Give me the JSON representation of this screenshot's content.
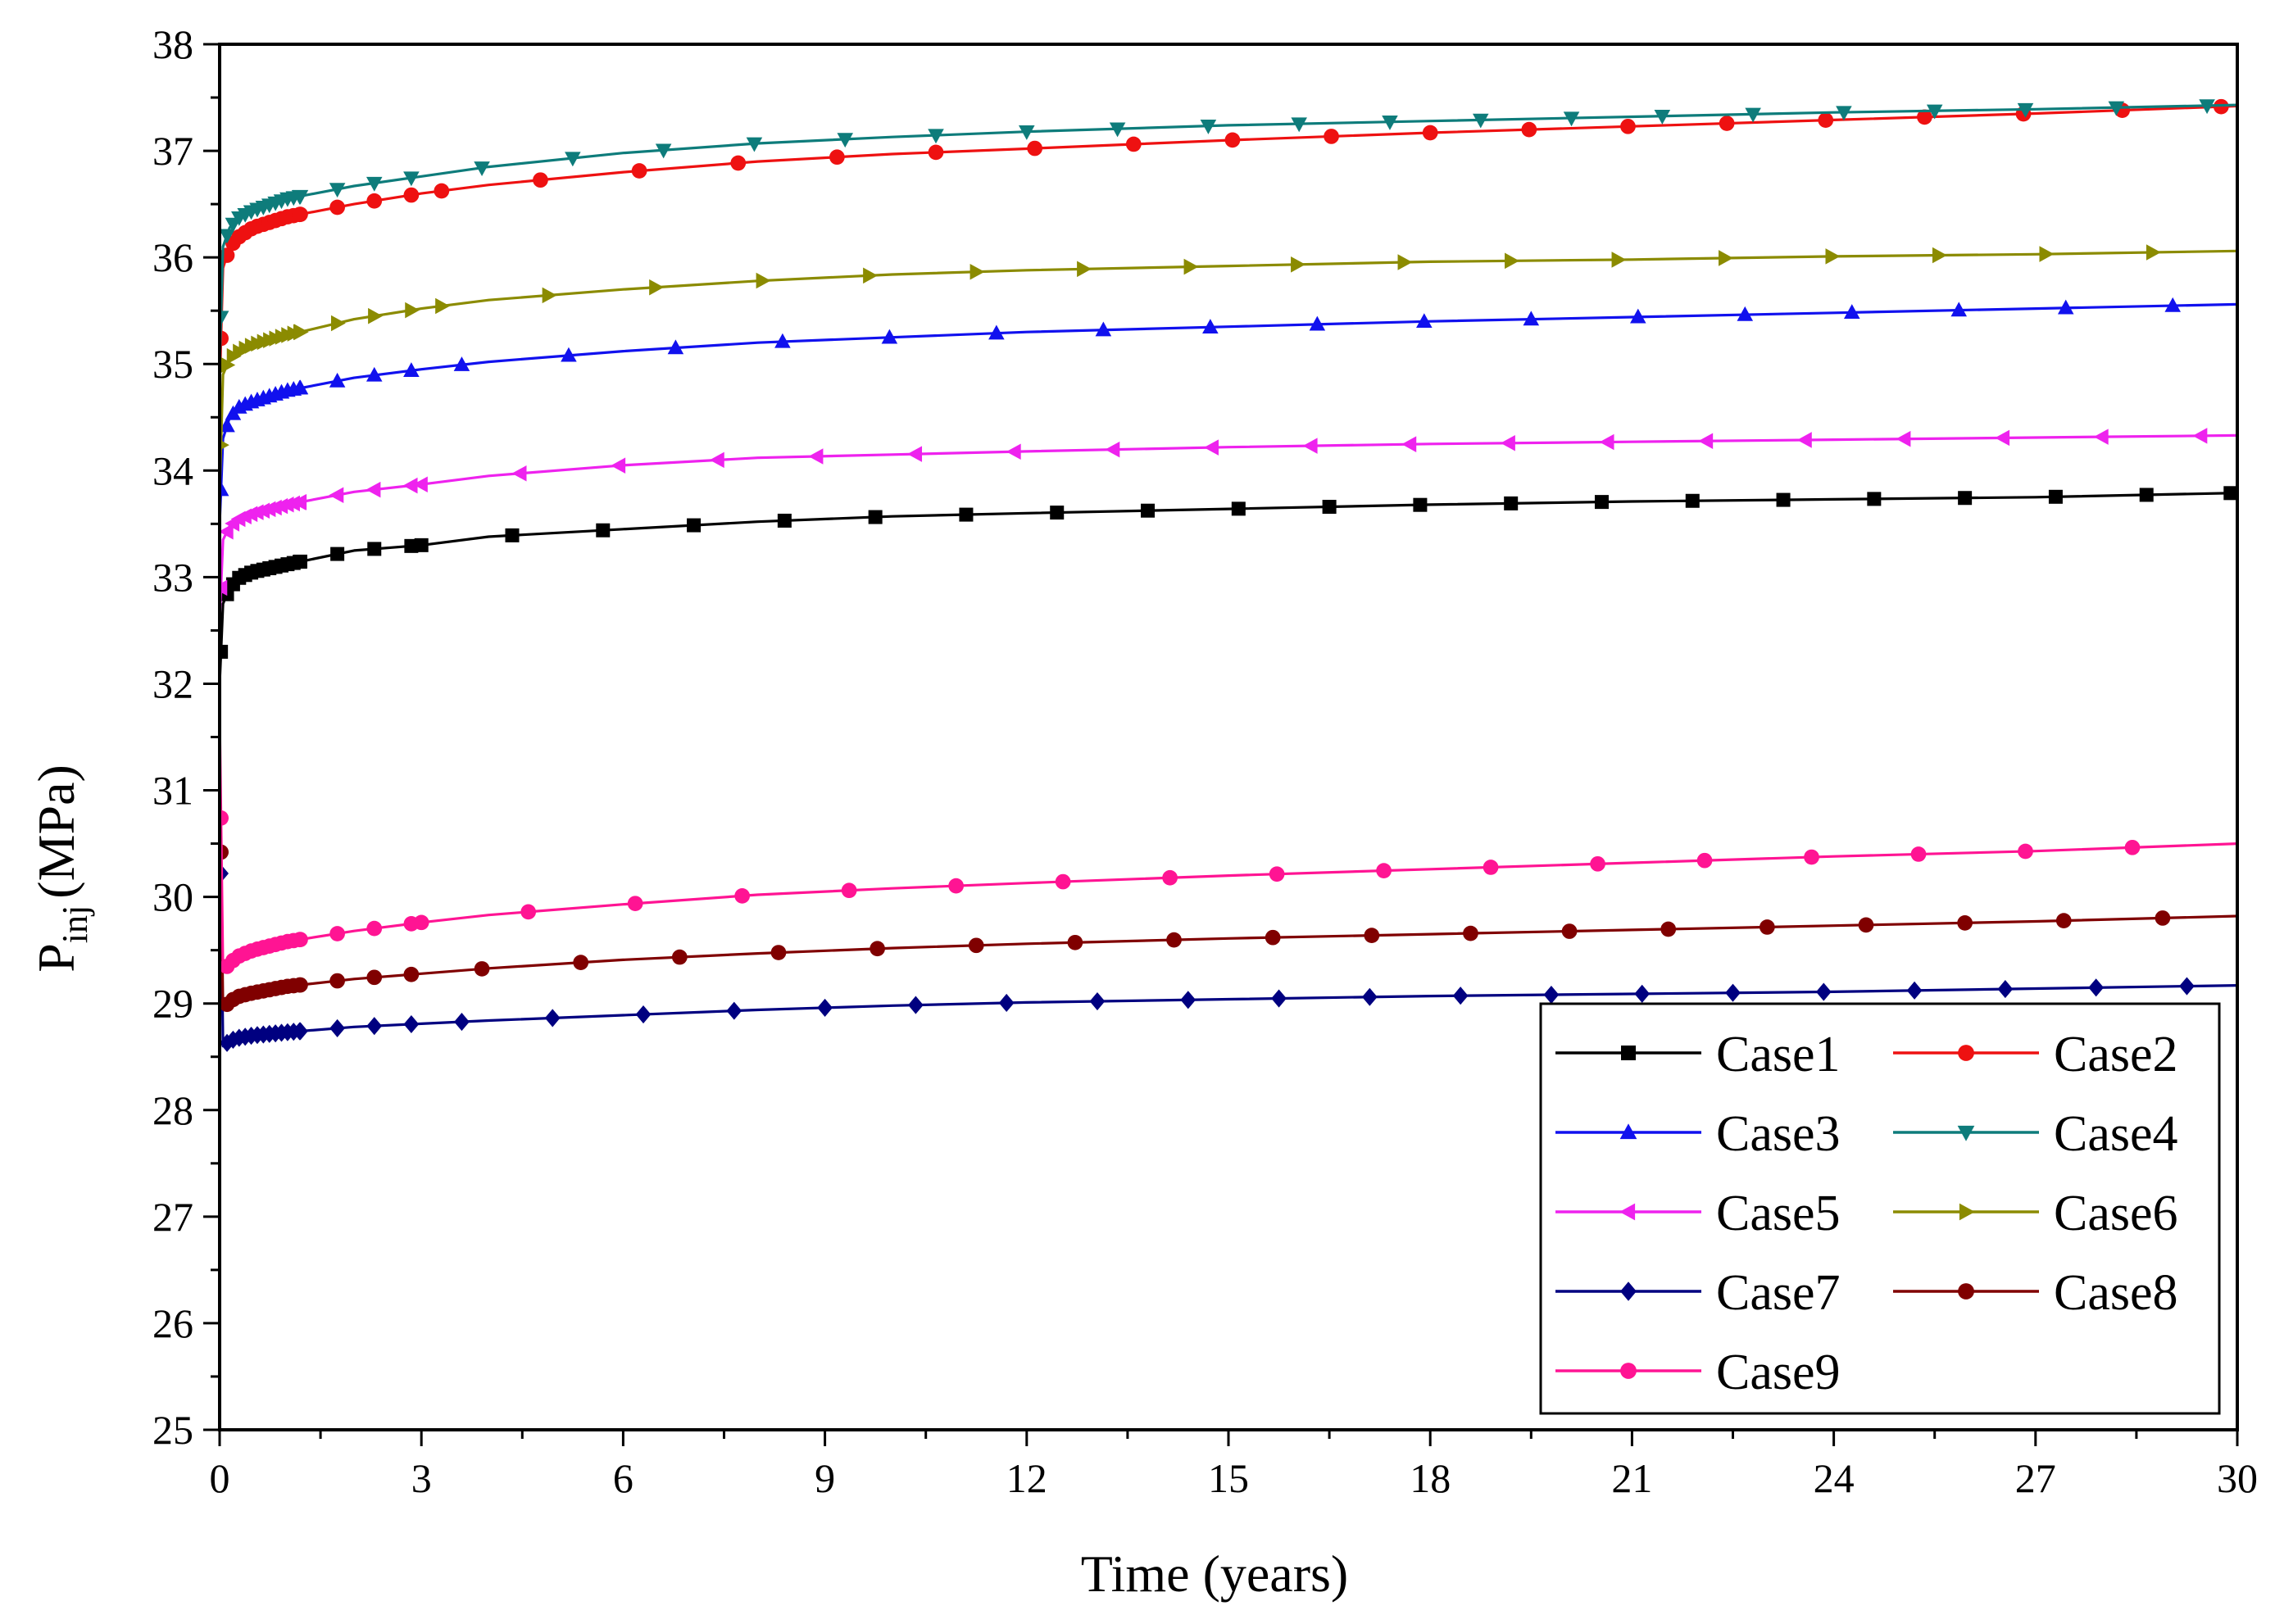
{
  "chart_data": {
    "type": "line",
    "title": "",
    "xlabel": "Time (years)",
    "ylabel": {
      "main": "P",
      "sub": "inj",
      "unit": "(MPa)"
    },
    "xlim": [
      0,
      30
    ],
    "ylim": [
      25,
      38
    ],
    "xticks": [
      0,
      3,
      6,
      9,
      12,
      15,
      18,
      21,
      24,
      27,
      30
    ],
    "yticks": [
      25,
      26,
      27,
      28,
      29,
      30,
      31,
      32,
      33,
      34,
      35,
      36,
      37,
      38
    ],
    "legend": "bottom-right, two columns",
    "series": [
      {
        "name": "Case1",
        "color": "#000000",
        "marker": "square",
        "x": [
          0,
          0.05,
          0.15,
          0.3,
          0.5,
          1,
          2,
          3,
          4,
          6,
          8,
          10,
          12,
          15,
          18,
          21,
          24,
          27,
          30
        ],
        "y": [
          32.0,
          32.75,
          32.9,
          33.0,
          33.05,
          33.12,
          33.25,
          33.3,
          33.38,
          33.45,
          33.52,
          33.57,
          33.6,
          33.64,
          33.68,
          33.71,
          33.73,
          33.75,
          33.79
        ]
      },
      {
        "name": "Case2",
        "color": "#ee1111",
        "marker": "circle",
        "x": [
          0,
          0.05,
          0.15,
          0.3,
          0.5,
          1,
          2,
          3,
          4,
          6,
          8,
          10,
          12,
          15,
          18,
          21,
          24,
          27,
          30
        ],
        "y": [
          34.8,
          35.9,
          36.1,
          36.2,
          36.28,
          36.38,
          36.5,
          36.6,
          36.68,
          36.8,
          36.9,
          36.97,
          37.02,
          37.1,
          37.17,
          37.23,
          37.29,
          37.35,
          37.42
        ]
      },
      {
        "name": "Case3",
        "color": "#1111ee",
        "marker": "triangle-up",
        "x": [
          0,
          0.05,
          0.15,
          0.3,
          0.5,
          1,
          2,
          3,
          4,
          6,
          8,
          10,
          12,
          15,
          18,
          21,
          24,
          27,
          30
        ],
        "y": [
          33.5,
          34.3,
          34.5,
          34.6,
          34.65,
          34.75,
          34.87,
          34.95,
          35.02,
          35.12,
          35.2,
          35.25,
          35.3,
          35.35,
          35.4,
          35.44,
          35.48,
          35.52,
          35.56
        ]
      },
      {
        "name": "Case4",
        "color": "#0e7c7b",
        "marker": "triangle-down",
        "x": [
          0,
          0.05,
          0.15,
          0.3,
          0.5,
          1,
          2,
          3,
          4,
          6,
          8,
          10,
          12,
          15,
          18,
          21,
          24,
          27,
          30
        ],
        "y": [
          35.0,
          36.1,
          36.28,
          36.38,
          36.44,
          36.55,
          36.67,
          36.76,
          36.85,
          36.98,
          37.07,
          37.13,
          37.18,
          37.24,
          37.28,
          37.32,
          37.36,
          37.39,
          37.43
        ]
      },
      {
        "name": "Case5",
        "color": "#ee22ee",
        "marker": "triangle-left",
        "x": [
          0,
          0.05,
          0.15,
          0.3,
          0.5,
          1,
          2,
          3,
          4,
          6,
          8,
          10,
          12,
          15,
          18,
          21,
          24,
          27,
          30
        ],
        "y": [
          32.6,
          33.35,
          33.48,
          33.55,
          33.6,
          33.68,
          33.8,
          33.87,
          33.95,
          34.05,
          34.12,
          34.15,
          34.18,
          34.22,
          34.25,
          34.27,
          34.29,
          34.31,
          34.33
        ]
      },
      {
        "name": "Case6",
        "color": "#8b8b00",
        "marker": "triangle-right",
        "x": [
          0,
          0.05,
          0.15,
          0.3,
          0.5,
          1,
          2,
          3,
          4,
          6,
          8,
          10,
          12,
          15,
          18,
          21,
          24,
          27,
          30
        ],
        "y": [
          33.8,
          34.9,
          35.05,
          35.12,
          35.18,
          35.27,
          35.42,
          35.52,
          35.6,
          35.7,
          35.78,
          35.84,
          35.88,
          35.92,
          35.96,
          35.98,
          36.01,
          36.03,
          36.06
        ]
      },
      {
        "name": "Case7",
        "color": "#000080",
        "marker": "diamond",
        "x": [
          0,
          0.05,
          0.15,
          0.3,
          0.5,
          1,
          2,
          3,
          4,
          6,
          8,
          10,
          12,
          15,
          18,
          21,
          24,
          27,
          30
        ],
        "y": [
          31.3,
          28.6,
          28.65,
          28.68,
          28.7,
          28.73,
          28.78,
          28.81,
          28.84,
          28.89,
          28.94,
          28.98,
          29.01,
          29.04,
          29.07,
          29.09,
          29.11,
          29.14,
          29.17
        ]
      },
      {
        "name": "Case8",
        "color": "#800000",
        "marker": "circle",
        "x": [
          0,
          0.05,
          0.15,
          0.3,
          0.5,
          1,
          2,
          3,
          4,
          6,
          8,
          10,
          12,
          15,
          18,
          21,
          24,
          27,
          30
        ],
        "y": [
          31.4,
          28.95,
          29.02,
          29.07,
          29.1,
          29.16,
          29.23,
          29.28,
          29.33,
          29.41,
          29.47,
          29.52,
          29.56,
          29.61,
          29.65,
          29.69,
          29.73,
          29.77,
          29.82
        ]
      },
      {
        "name": "Case9",
        "color": "#ff1493",
        "marker": "circle",
        "x": [
          0,
          0.05,
          0.15,
          0.3,
          0.5,
          1,
          2,
          3,
          4,
          6,
          8,
          10,
          12,
          15,
          18,
          21,
          24,
          27,
          30
        ],
        "y": [
          31.7,
          29.3,
          29.38,
          29.45,
          29.5,
          29.58,
          29.68,
          29.76,
          29.83,
          29.93,
          30.02,
          30.08,
          30.13,
          30.2,
          30.26,
          30.32,
          30.38,
          30.43,
          30.5
        ]
      }
    ]
  }
}
